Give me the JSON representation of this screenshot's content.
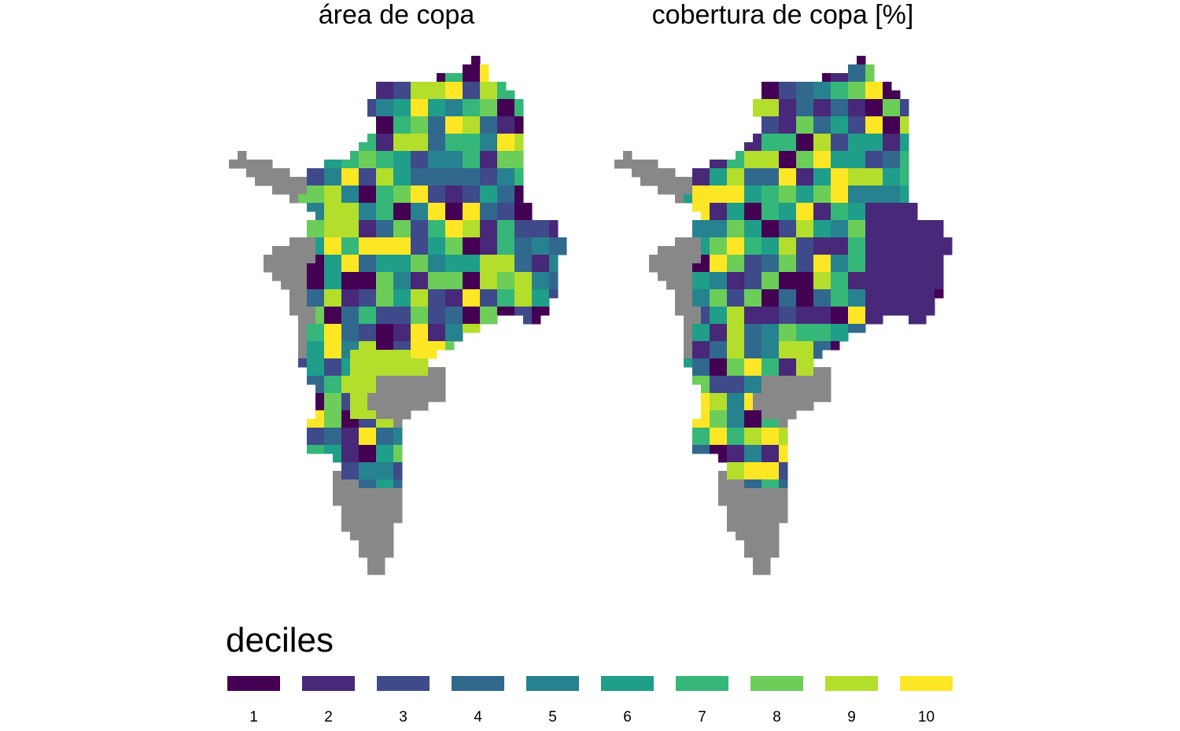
{
  "maps": [
    {
      "title": "área de copa"
    },
    {
      "title": "cobertura de copa [%]"
    }
  ],
  "legend": {
    "title": "deciles",
    "items": [
      {
        "label": "1",
        "color": "#440154"
      },
      {
        "label": "2",
        "color": "#482878"
      },
      {
        "label": "3",
        "color": "#3E4A89"
      },
      {
        "label": "4",
        "color": "#31688E"
      },
      {
        "label": "5",
        "color": "#26828E"
      },
      {
        "label": "6",
        "color": "#1F9E89"
      },
      {
        "label": "7",
        "color": "#35B779"
      },
      {
        "label": "8",
        "color": "#6DCD59"
      },
      {
        "label": "9",
        "color": "#B4DE2C"
      },
      {
        "label": "10",
        "color": "#FDE725"
      }
    ],
    "no_data_color": "#888888"
  }
}
